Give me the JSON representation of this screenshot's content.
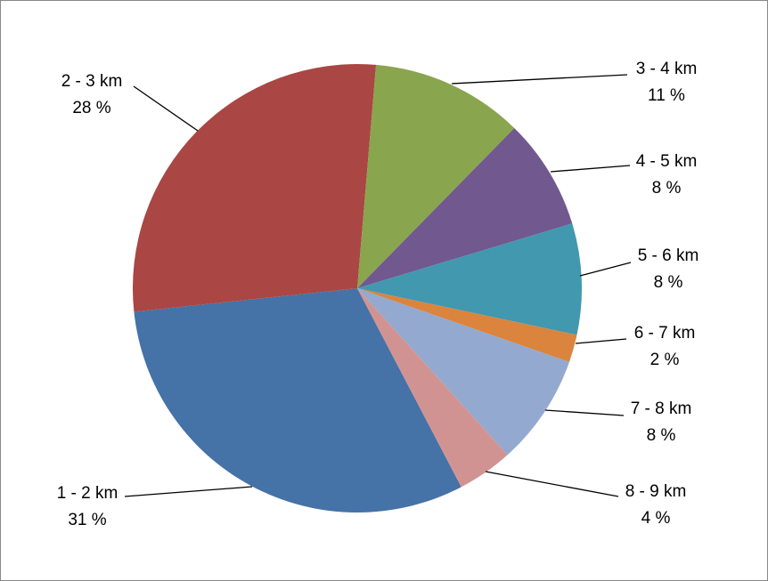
{
  "chart_data": {
    "type": "pie",
    "categories": [
      "1 - 2 km",
      "2 - 3 km",
      "3 - 4 km",
      "4 - 5 km",
      "5 - 6 km",
      "6 - 7 km",
      "7 - 8 km",
      "8 - 9 km"
    ],
    "values": [
      31,
      28,
      11,
      8,
      8,
      2,
      8,
      4
    ],
    "value_labels": [
      "31 %",
      "28 %",
      "11 %",
      "8 %",
      "8 %",
      "2 %",
      "8 %",
      "4 %"
    ],
    "colors": [
      "#4572a7",
      "#aa4643",
      "#89a54e",
      "#71588f",
      "#4198af",
      "#db843d",
      "#93a9cf",
      "#d19392"
    ]
  }
}
